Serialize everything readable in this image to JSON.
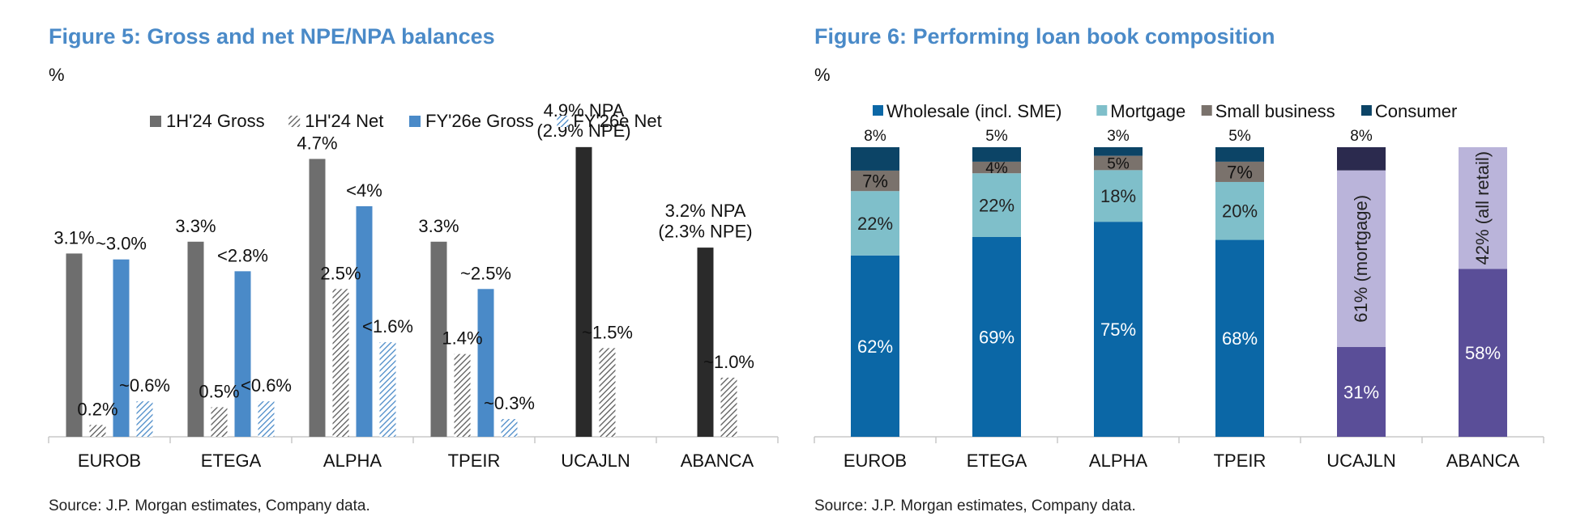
{
  "fig5": {
    "title": "Figure 5: Gross and net NPE/NPA balances",
    "unit": "%",
    "source": "Source: J.P. Morgan estimates, Company data."
  },
  "fig6": {
    "title": "Figure 6: Performing loan book composition",
    "unit": "%",
    "source": "Source: J.P. Morgan estimates, Company data."
  },
  "chart_data": [
    {
      "type": "bar",
      "title": "Figure 5: Gross and net NPE/NPA balances",
      "ylabel": "%",
      "ylim": [
        0,
        5.5
      ],
      "legend_position": "top",
      "categories": [
        "EUROB",
        "ETEGA",
        "ALPHA",
        "TPEIR",
        "UCAJLN",
        "ABANCA"
      ],
      "series": [
        {
          "name": "1H'24 Gross",
          "color": "#6e6e6e",
          "pattern": "solid",
          "values": [
            3.1,
            3.3,
            4.7,
            3.3,
            null,
            null
          ]
        },
        {
          "name": "1H'24 Net",
          "color": "#6e6e6e",
          "pattern": "hatch",
          "values": [
            0.2,
            0.5,
            2.5,
            1.4,
            null,
            null
          ]
        },
        {
          "name": "FY'26e Gross",
          "color": "#4a8ac8",
          "pattern": "solid",
          "values": [
            3.0,
            2.8,
            3.9,
            2.5,
            null,
            null
          ]
        },
        {
          "name": "FY'26e Net",
          "color": "#4a8ac8",
          "pattern": "hatch",
          "values": [
            0.6,
            0.6,
            1.6,
            0.3,
            null,
            null
          ]
        },
        {
          "name": "",
          "color": "#2a2a2a",
          "pattern": "solid",
          "values": [
            null,
            null,
            null,
            null,
            4.9,
            3.2
          ]
        },
        {
          "name": "",
          "color": "#6e6e6e",
          "pattern": "hatch",
          "values": [
            null,
            null,
            null,
            null,
            1.5,
            1.0
          ]
        }
      ],
      "data_labels": [
        [
          "3.1%",
          "0.2%",
          "~3.0%",
          "~0.6%",
          null,
          null
        ],
        [
          "3.3%",
          "0.5%",
          "<2.8%",
          "<0.6%",
          null,
          null
        ],
        [
          "4.7%",
          "2.5%",
          "<4%",
          "<1.6%",
          null,
          null
        ],
        [
          "3.3%",
          "1.4%",
          "~2.5%",
          "~0.3%",
          null,
          null
        ],
        [
          null,
          null,
          null,
          null,
          "4.9% NPA\n(2.9% NPE)",
          "~1.5%"
        ],
        [
          null,
          null,
          null,
          null,
          "3.2% NPA\n(2.3% NPE)",
          "~1.0%"
        ]
      ],
      "grid": false
    },
    {
      "type": "stacked_bar",
      "title": "Figure 6: Performing loan book composition",
      "ylabel": "%",
      "ylim": [
        0,
        100
      ],
      "legend_position": "top",
      "categories": [
        "EUROB",
        "ETEGA",
        "ALPHA",
        "TPEIR",
        "UCAJLN",
        "ABANCA"
      ],
      "series": [
        {
          "name": "Wholesale (incl. SME)",
          "color": "#0b67a6",
          "values": [
            62,
            69,
            75,
            68,
            null,
            null
          ],
          "labels": [
            "62%",
            "69%",
            "75%",
            "68%",
            null,
            null
          ]
        },
        {
          "name": "Mortgage",
          "color": "#7fbfca",
          "values": [
            22,
            22,
            18,
            20,
            null,
            null
          ],
          "labels": [
            "22%",
            "22%",
            "18%",
            "20%",
            null,
            null
          ]
        },
        {
          "name": "Small business",
          "color": "#7a726c",
          "values": [
            7,
            4,
            5,
            7,
            null,
            null
          ],
          "labels": [
            "7%",
            "4%",
            "5%",
            "7%",
            null,
            null
          ]
        },
        {
          "name": "Consumer",
          "color": "#0c4466",
          "values": [
            8,
            5,
            3,
            5,
            null,
            null
          ],
          "labels": [
            "8%",
            "5%",
            "3%",
            "5%",
            null,
            null
          ]
        }
      ],
      "other_segments": [
        {
          "category": "UCAJLN",
          "segments": [
            {
              "value": 31,
              "color": "#5a4e98",
              "label": "31%",
              "label_rotated": false
            },
            {
              "value": 61,
              "color": "#bab4da",
              "label": "61% (mortgage)",
              "label_rotated": true
            },
            {
              "value": 8,
              "color": "#2b2a4e",
              "label": "8%",
              "label_outside": true
            }
          ]
        },
        {
          "category": "ABANCA",
          "segments": [
            {
              "value": 58,
              "color": "#5a4e98",
              "label": "58%",
              "label_rotated": false
            },
            {
              "value": 42,
              "color": "#bab4da",
              "label": "42% (all retail)",
              "label_rotated": true
            }
          ]
        }
      ],
      "grid": false
    }
  ]
}
